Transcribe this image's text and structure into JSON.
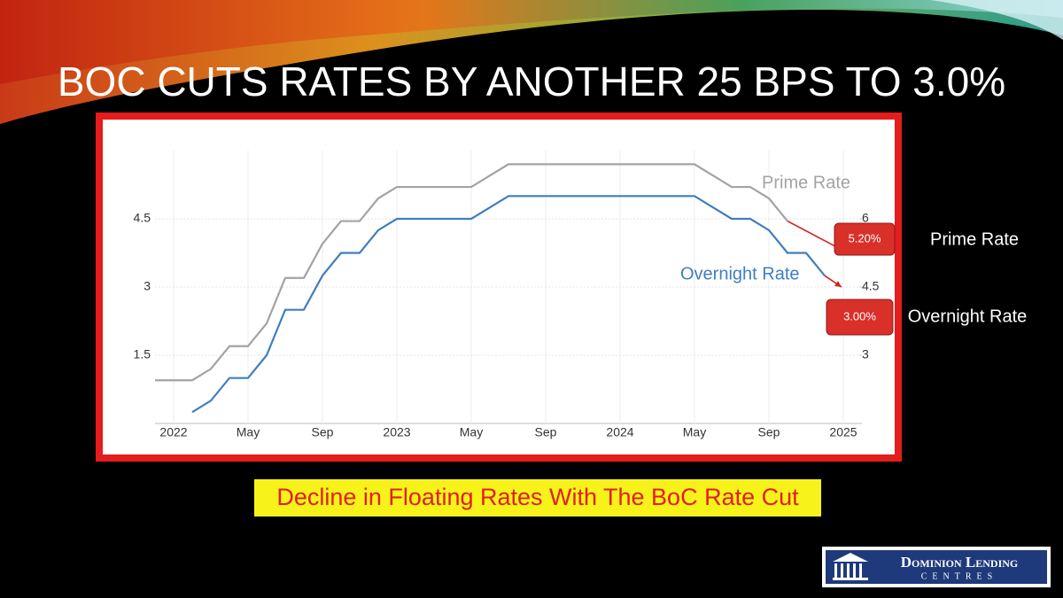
{
  "chart_data": {
    "type": "line",
    "title": "BOC CUTS RATES BY ANOTHER 25 BPS TO 3.0%",
    "caption": "Decline in Floating Rates With The BoC Rate Cut",
    "logo": {
      "name": "Dominion Lending",
      "sub": "CENTRES"
    },
    "xlim": [
      "2021-12",
      "2025-02"
    ],
    "xticks": [
      {
        "value": "2022-01",
        "label": "2022"
      },
      {
        "value": "2022-05",
        "label": "May"
      },
      {
        "value": "2022-09",
        "label": "Sep"
      },
      {
        "value": "2023-01",
        "label": "2023"
      },
      {
        "value": "2023-05",
        "label": "May"
      },
      {
        "value": "2023-09",
        "label": "Sep"
      },
      {
        "value": "2024-01",
        "label": "2024"
      },
      {
        "value": "2024-05",
        "label": "May"
      },
      {
        "value": "2024-09",
        "label": "Sep"
      },
      {
        "value": "2025-01",
        "label": "2025"
      }
    ],
    "ylim": [
      0,
      6
    ],
    "yticks": [
      1.5,
      3,
      4.5
    ],
    "y2lim": [
      1.5,
      7.5
    ],
    "y2ticks": [
      3,
      4.5,
      6
    ],
    "grid": true,
    "series": [
      {
        "name": "Overnight Rate",
        "color": "#3f7fbf",
        "axis": "y",
        "x": [
          "2022-02",
          "2022-03",
          "2022-04",
          "2022-05",
          "2022-06",
          "2022-07",
          "2022-08",
          "2022-09",
          "2022-10",
          "2022-11",
          "2022-12",
          "2023-01",
          "2023-02",
          "2023-03",
          "2023-04",
          "2023-05",
          "2023-06",
          "2023-07",
          "2023-08",
          "2023-09",
          "2023-10",
          "2023-11",
          "2023-12",
          "2024-01",
          "2024-02",
          "2024-03",
          "2024-04",
          "2024-05",
          "2024-06",
          "2024-07",
          "2024-08",
          "2024-09",
          "2024-10",
          "2024-11",
          "2024-12"
        ],
        "values": [
          0.25,
          0.5,
          1,
          1,
          1.5,
          2.5,
          2.5,
          3.25,
          3.75,
          3.75,
          4.25,
          4.5,
          4.5,
          4.5,
          4.5,
          4.5,
          4.75,
          5,
          5,
          5,
          5,
          5,
          5,
          5,
          5,
          5,
          5,
          5,
          4.75,
          4.5,
          4.5,
          4.25,
          3.75,
          3.75,
          3.25
        ],
        "callout": {
          "value": 3.0,
          "label": "3.00%"
        }
      },
      {
        "name": "Prime Rate",
        "color": "#a3a3a3",
        "axis": "y2",
        "x": [
          "2021-12",
          "2022-01",
          "2022-02",
          "2022-03",
          "2022-04",
          "2022-05",
          "2022-06",
          "2022-07",
          "2022-08",
          "2022-09",
          "2022-10",
          "2022-11",
          "2022-12",
          "2023-01",
          "2023-02",
          "2023-03",
          "2023-04",
          "2023-05",
          "2023-06",
          "2023-07",
          "2023-08",
          "2023-09",
          "2023-10",
          "2023-11",
          "2023-12",
          "2024-01",
          "2024-02",
          "2024-03",
          "2024-04",
          "2024-05",
          "2024-06",
          "2024-07",
          "2024-08",
          "2024-09",
          "2024-10"
        ],
        "values": [
          2.45,
          2.45,
          2.45,
          2.7,
          3.2,
          3.2,
          3.7,
          4.7,
          4.7,
          5.45,
          5.95,
          5.95,
          6.45,
          6.7,
          6.7,
          6.7,
          6.7,
          6.7,
          6.95,
          7.2,
          7.2,
          7.2,
          7.2,
          7.2,
          7.2,
          7.2,
          7.2,
          7.2,
          7.2,
          7.2,
          6.95,
          6.7,
          6.7,
          6.45,
          5.95
        ],
        "callout": {
          "value": 5.2,
          "label": "5.20%"
        }
      }
    ]
  }
}
